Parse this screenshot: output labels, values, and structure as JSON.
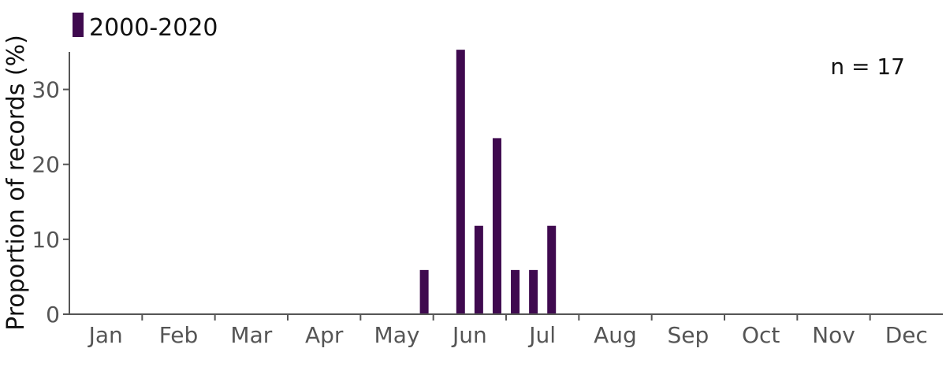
{
  "chart_data": {
    "type": "bar",
    "ylabel": "Proportion of records (%)",
    "xlabel": "",
    "ylim": [
      0,
      35
    ],
    "yticks": [
      0,
      10,
      20,
      30
    ],
    "months": [
      "Jan",
      "Feb",
      "Mar",
      "Apr",
      "May",
      "Jun",
      "Jul",
      "Aug",
      "Sep",
      "Oct",
      "Nov",
      "Dec"
    ],
    "bins_per_month": 4,
    "series": [
      {
        "name": "2000-2020",
        "color": "#3f0a4f",
        "values": [
          0,
          0,
          0,
          0,
          0,
          0,
          0,
          0,
          0,
          0,
          0,
          0,
          0,
          0,
          0,
          0,
          0,
          0,
          0,
          5.9,
          0,
          35.3,
          11.8,
          23.5,
          5.9,
          5.9,
          11.8,
          0,
          0,
          0,
          0,
          0,
          0,
          0,
          0,
          0,
          0,
          0,
          0,
          0,
          0,
          0,
          0,
          0,
          0,
          0,
          0,
          0
        ]
      }
    ],
    "legend": {
      "position": "top-left"
    },
    "annotation": "n = 17",
    "grid": false
  }
}
